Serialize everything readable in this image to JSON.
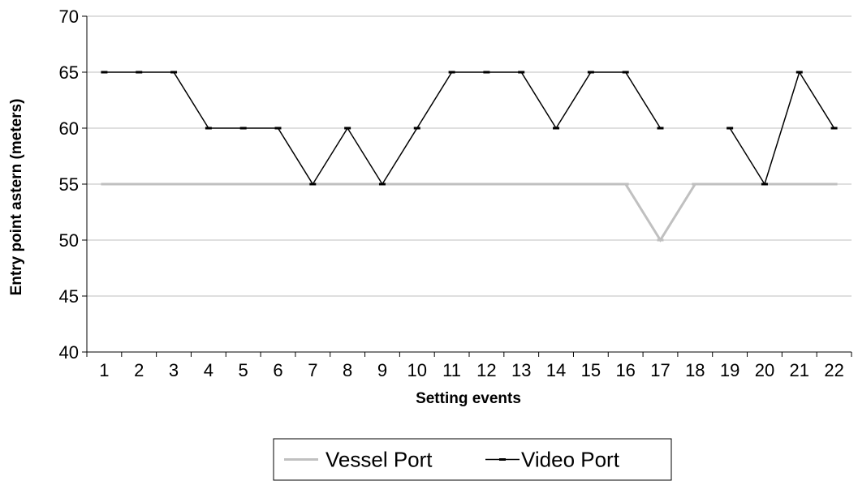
{
  "chart_data": {
    "type": "line",
    "xlabel": "Setting events",
    "ylabel": "Entry point astern (meters)",
    "categories": [
      "1",
      "2",
      "3",
      "4",
      "5",
      "6",
      "7",
      "8",
      "9",
      "10",
      "11",
      "12",
      "13",
      "14",
      "15",
      "16",
      "17",
      "18",
      "19",
      "20",
      "21",
      "22"
    ],
    "ylim": [
      40,
      70
    ],
    "yticks": [
      40,
      45,
      50,
      55,
      60,
      65,
      70
    ],
    "grid": true,
    "legend_position": "bottom",
    "series": [
      {
        "name": "Vessel Port",
        "color": "#c0c0c0",
        "values": [
          55,
          55,
          55,
          55,
          55,
          55,
          55,
          55,
          55,
          55,
          55,
          55,
          55,
          55,
          55,
          55,
          50,
          55,
          55,
          55,
          55,
          55
        ]
      },
      {
        "name": "Video Port",
        "color": "#000000",
        "values": [
          65,
          65,
          65,
          60,
          60,
          60,
          55,
          60,
          55,
          60,
          65,
          65,
          65,
          60,
          65,
          65,
          60,
          null,
          60,
          55,
          65,
          60
        ]
      }
    ]
  }
}
